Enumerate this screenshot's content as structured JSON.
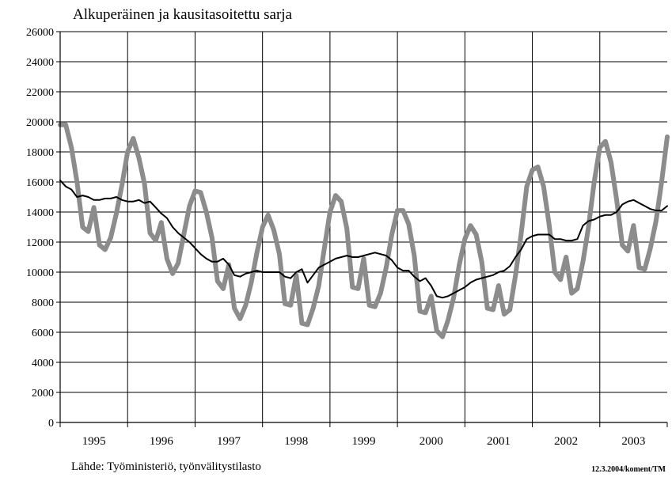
{
  "chart_data": {
    "type": "line",
    "title": "Alkuperäinen ja kausitasoitettu sarja",
    "source": "Lähde: Työministeriö, työnvälitystilasto",
    "stamp": "12.3.2004/koment/TM",
    "ylim": [
      0,
      26000
    ],
    "yticks": [
      0,
      2000,
      4000,
      6000,
      8000,
      10000,
      12000,
      14000,
      16000,
      18000,
      20000,
      22000,
      24000,
      26000
    ],
    "xlim": [
      1995.0,
      2004.0
    ],
    "xtick_labels": [
      "1995",
      "1996",
      "1997",
      "1998",
      "1999",
      "2000",
      "2001",
      "2002",
      "2003"
    ],
    "grid": true,
    "colors": {
      "original": "#8c8c8c",
      "seasonal": "#000000",
      "grid": "#000000"
    },
    "series": [
      {
        "key": "original",
        "x": [
          1995.0,
          1995.083,
          1995.167,
          1995.25,
          1995.333,
          1995.417,
          1995.5,
          1995.583,
          1995.667,
          1995.75,
          1995.833,
          1995.917,
          1996.0,
          1996.083,
          1996.167,
          1996.25,
          1996.333,
          1996.417,
          1996.5,
          1996.583,
          1996.667,
          1996.75,
          1996.833,
          1996.917,
          1997.0,
          1997.083,
          1997.167,
          1997.25,
          1997.333,
          1997.417,
          1997.5,
          1997.583,
          1997.667,
          1997.75,
          1997.833,
          1997.917,
          1998.0,
          1998.083,
          1998.167,
          1998.25,
          1998.333,
          1998.417,
          1998.5,
          1998.583,
          1998.667,
          1998.75,
          1998.833,
          1998.917,
          1999.0,
          1999.083,
          1999.167,
          1999.25,
          1999.333,
          1999.417,
          1999.5,
          1999.583,
          1999.667,
          1999.75,
          1999.833,
          1999.917,
          2000.0,
          2000.083,
          2000.167,
          2000.25,
          2000.333,
          2000.417,
          2000.5,
          2000.583,
          2000.667,
          2000.75,
          2000.833,
          2000.917,
          2001.0,
          2001.083,
          2001.167,
          2001.25,
          2001.333,
          2001.417,
          2001.5,
          2001.583,
          2001.667,
          2001.75,
          2001.833,
          2001.917,
          2002.0,
          2002.083,
          2002.167,
          2002.25,
          2002.333,
          2002.417,
          2002.5,
          2002.583,
          2002.667,
          2002.75,
          2002.833,
          2002.917,
          2003.0,
          2003.083,
          2003.167,
          2003.25,
          2003.333,
          2003.417,
          2003.5,
          2003.583,
          2003.667,
          2003.75,
          2003.833,
          2003.917,
          2004.0
        ],
        "y": [
          19800,
          19800,
          18300,
          16000,
          13000,
          12700,
          14300,
          11800,
          11500,
          12300,
          13900,
          15800,
          18000,
          18900,
          17600,
          15900,
          12600,
          12100,
          13300,
          10900,
          9900,
          10600,
          12500,
          14400,
          15400,
          15300,
          14000,
          12300,
          9400,
          8900,
          10500,
          7600,
          6900,
          7800,
          9300,
          11300,
          13000,
          13800,
          12800,
          11200,
          7900,
          7800,
          9800,
          6600,
          6500,
          7600,
          9100,
          11600,
          14000,
          15100,
          14700,
          12900,
          9000,
          8900,
          10900,
          7800,
          7700,
          8600,
          10300,
          12500,
          14100,
          14100,
          13200,
          11100,
          7400,
          7300,
          8400,
          6100,
          5700,
          6800,
          8300,
          10500,
          12200,
          13100,
          12500,
          10700,
          7600,
          7500,
          9100,
          7200,
          7500,
          9800,
          12500,
          15700,
          16800,
          17000,
          15700,
          13100,
          10000,
          9500,
          11000,
          8600,
          8900,
          10700,
          13000,
          16000,
          18300,
          18700,
          17300,
          14800,
          11800,
          11400,
          13100,
          10300,
          10200,
          11600,
          13400,
          16000,
          19000
        ]
      },
      {
        "key": "seasonal",
        "x": [
          1995.0,
          1995.083,
          1995.167,
          1995.25,
          1995.333,
          1995.417,
          1995.5,
          1995.583,
          1995.667,
          1995.75,
          1995.833,
          1995.917,
          1996.0,
          1996.083,
          1996.167,
          1996.25,
          1996.333,
          1996.417,
          1996.5,
          1996.583,
          1996.667,
          1996.75,
          1996.833,
          1996.917,
          1997.0,
          1997.083,
          1997.167,
          1997.25,
          1997.333,
          1997.417,
          1997.5,
          1997.583,
          1997.667,
          1997.75,
          1997.833,
          1997.917,
          1998.0,
          1998.083,
          1998.167,
          1998.25,
          1998.333,
          1998.417,
          1998.5,
          1998.583,
          1998.667,
          1998.75,
          1998.833,
          1998.917,
          1999.0,
          1999.083,
          1999.167,
          1999.25,
          1999.333,
          1999.417,
          1999.5,
          1999.583,
          1999.667,
          1999.75,
          1999.833,
          1999.917,
          2000.0,
          2000.083,
          2000.167,
          2000.25,
          2000.333,
          2000.417,
          2000.5,
          2000.583,
          2000.667,
          2000.75,
          2000.833,
          2000.917,
          2001.0,
          2001.083,
          2001.167,
          2001.25,
          2001.333,
          2001.417,
          2001.5,
          2001.583,
          2001.667,
          2001.75,
          2001.833,
          2001.917,
          2002.0,
          2002.083,
          2002.167,
          2002.25,
          2002.333,
          2002.417,
          2002.5,
          2002.583,
          2002.667,
          2002.75,
          2002.833,
          2002.917,
          2003.0,
          2003.083,
          2003.167,
          2003.25,
          2003.333,
          2003.417,
          2003.5,
          2003.583,
          2003.667,
          2003.75,
          2003.833,
          2003.917,
          2004.0
        ],
        "y": [
          16100,
          15700,
          15500,
          15000,
          15100,
          15000,
          14800,
          14800,
          14900,
          14900,
          15000,
          14800,
          14700,
          14700,
          14800,
          14600,
          14700,
          14300,
          13900,
          13600,
          13000,
          12600,
          12300,
          12000,
          11600,
          11200,
          10900,
          10700,
          10700,
          10900,
          10500,
          9800,
          9700,
          9900,
          10000,
          10100,
          10000,
          10000,
          10000,
          10000,
          9700,
          9600,
          10000,
          10200,
          9300,
          9800,
          10300,
          10500,
          10700,
          10900,
          11000,
          11100,
          11000,
          11000,
          11100,
          11200,
          11300,
          11200,
          11100,
          10800,
          10300,
          10100,
          10100,
          9700,
          9400,
          9600,
          9100,
          8400,
          8300,
          8400,
          8600,
          8800,
          9000,
          9300,
          9500,
          9600,
          9700,
          9800,
          10000,
          10100,
          10400,
          11000,
          11500,
          12200,
          12400,
          12500,
          12500,
          12500,
          12200,
          12200,
          12100,
          12100,
          12200,
          13100,
          13400,
          13500,
          13700,
          13800,
          13800,
          14000,
          14500,
          14700,
          14800,
          14600,
          14400,
          14200,
          14100,
          14100,
          14400
        ]
      }
    ]
  }
}
